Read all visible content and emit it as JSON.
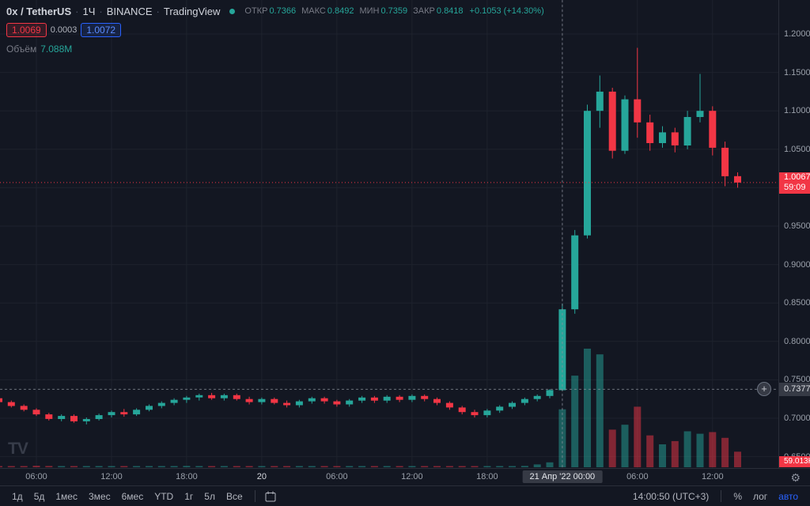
{
  "header": {
    "symbol": "0x / TetherUS",
    "separator": "·",
    "interval": "1Ч",
    "exchange": "BINANCE",
    "brand": "TradingView",
    "ohlc": {
      "open_label": "ОТКР",
      "open": "0.7366",
      "high_label": "МАКС",
      "high": "0.8492",
      "low_label": "МИН",
      "low": "0.7359",
      "close_label": "ЗАКР",
      "close": "0.8418",
      "change": "+0.1053 (+14.30%)"
    },
    "bid": "1.0069",
    "spread": "0.0003",
    "ask": "1.0072",
    "volume_label": "Объём",
    "volume_value": "7.088M"
  },
  "chart_data": {
    "type": "candlestick",
    "title": "0x / TetherUS 1H BINANCE",
    "description": "Hourly ZRX/USDT candles with volume; large pump at 21 Apr '22 00:00 from ~0.73 to ~1.18, now ~1.0067",
    "ylim": [
      0.645,
      1.21
    ],
    "grid": {
      "prices": [
        1.2,
        1.15,
        1.1,
        1.05,
        1.0,
        0.95,
        0.9,
        0.85,
        0.8,
        0.75,
        0.7,
        0.65
      ],
      "time_indices": [
        3,
        9,
        15,
        21,
        27,
        33,
        39,
        45,
        51,
        57
      ]
    },
    "price_axis_labels": [
      {
        "value": 1.2,
        "text": "1.2000"
      },
      {
        "value": 1.15,
        "text": "1.1500"
      },
      {
        "value": 1.1,
        "text": "1.1000"
      },
      {
        "value": 1.05,
        "text": "1.0500"
      },
      {
        "value": 0.95,
        "text": "0.9500"
      },
      {
        "value": 0.9,
        "text": "0.9000"
      },
      {
        "value": 0.85,
        "text": "0.8500"
      },
      {
        "value": 0.8,
        "text": "0.8000"
      },
      {
        "value": 0.75,
        "text": "0.7500"
      },
      {
        "value": 0.7,
        "text": "0.7000"
      },
      {
        "value": 0.65,
        "text": "0.6500"
      }
    ],
    "time_axis_labels": [
      {
        "index": 3,
        "label": "06:00"
      },
      {
        "index": 9,
        "label": "12:00"
      },
      {
        "index": 15,
        "label": "18:00"
      },
      {
        "index": 21,
        "label": "20",
        "emphasis": true
      },
      {
        "index": 27,
        "label": "06:00"
      },
      {
        "index": 33,
        "label": "12:00"
      },
      {
        "index": 39,
        "label": "18:00"
      },
      {
        "index": 51,
        "label": "06:00"
      },
      {
        "index": 57,
        "label": "12:00"
      }
    ],
    "candles": [
      [
        0.726,
        0.7285,
        0.719,
        0.721,
        0.12
      ],
      [
        0.721,
        0.723,
        0.714,
        0.716,
        0.1
      ],
      [
        0.716,
        0.718,
        0.709,
        0.711,
        0.14
      ],
      [
        0.711,
        0.713,
        0.703,
        0.705,
        0.18
      ],
      [
        0.705,
        0.707,
        0.697,
        0.699,
        0.15
      ],
      [
        0.699,
        0.705,
        0.696,
        0.703,
        0.11
      ],
      [
        0.703,
        0.705,
        0.694,
        0.696,
        0.09
      ],
      [
        0.696,
        0.701,
        0.692,
        0.699,
        0.08
      ],
      [
        0.699,
        0.706,
        0.697,
        0.704,
        0.1
      ],
      [
        0.704,
        0.71,
        0.701,
        0.708,
        0.12
      ],
      [
        0.708,
        0.712,
        0.702,
        0.705,
        0.09
      ],
      [
        0.705,
        0.713,
        0.703,
        0.711,
        0.11
      ],
      [
        0.711,
        0.718,
        0.709,
        0.716,
        0.13
      ],
      [
        0.716,
        0.722,
        0.713,
        0.72,
        0.14
      ],
      [
        0.72,
        0.726,
        0.717,
        0.724,
        0.12
      ],
      [
        0.724,
        0.729,
        0.72,
        0.727,
        0.16
      ],
      [
        0.727,
        0.732,
        0.723,
        0.73,
        0.13
      ],
      [
        0.73,
        0.733,
        0.724,
        0.726,
        0.1
      ],
      [
        0.726,
        0.732,
        0.723,
        0.73,
        0.09
      ],
      [
        0.73,
        0.732,
        0.723,
        0.725,
        0.08
      ],
      [
        0.725,
        0.728,
        0.718,
        0.721,
        0.1
      ],
      [
        0.721,
        0.727,
        0.718,
        0.725,
        0.11
      ],
      [
        0.725,
        0.727,
        0.718,
        0.72,
        0.09
      ],
      [
        0.72,
        0.723,
        0.714,
        0.717,
        0.08
      ],
      [
        0.717,
        0.724,
        0.714,
        0.722,
        0.1
      ],
      [
        0.722,
        0.728,
        0.719,
        0.726,
        0.11
      ],
      [
        0.726,
        0.728,
        0.719,
        0.722,
        0.09
      ],
      [
        0.722,
        0.724,
        0.715,
        0.718,
        0.1
      ],
      [
        0.718,
        0.725,
        0.715,
        0.723,
        0.11
      ],
      [
        0.723,
        0.729,
        0.72,
        0.727,
        0.12
      ],
      [
        0.727,
        0.729,
        0.72,
        0.723,
        0.09
      ],
      [
        0.723,
        0.73,
        0.72,
        0.728,
        0.11
      ],
      [
        0.728,
        0.73,
        0.721,
        0.724,
        0.1
      ],
      [
        0.724,
        0.731,
        0.721,
        0.729,
        0.12
      ],
      [
        0.729,
        0.731,
        0.722,
        0.725,
        0.09
      ],
      [
        0.725,
        0.727,
        0.717,
        0.72,
        0.1
      ],
      [
        0.72,
        0.722,
        0.711,
        0.714,
        0.12
      ],
      [
        0.714,
        0.716,
        0.705,
        0.708,
        0.13
      ],
      [
        0.708,
        0.711,
        0.701,
        0.704,
        0.11
      ],
      [
        0.704,
        0.712,
        0.701,
        0.71,
        0.12
      ],
      [
        0.71,
        0.717,
        0.707,
        0.715,
        0.13
      ],
      [
        0.715,
        0.722,
        0.712,
        0.72,
        0.14
      ],
      [
        0.72,
        0.727,
        0.717,
        0.725,
        0.16
      ],
      [
        0.725,
        0.731,
        0.722,
        0.729,
        0.35
      ],
      [
        0.729,
        0.738,
        0.726,
        0.7366,
        0.6
      ],
      [
        0.7366,
        0.8492,
        0.7359,
        0.8418,
        7.088
      ],
      [
        0.8418,
        0.945,
        0.836,
        0.938,
        11.2
      ],
      [
        0.938,
        1.108,
        0.934,
        1.1,
        14.5
      ],
      [
        1.1,
        1.146,
        1.078,
        1.125,
        13.8
      ],
      [
        1.125,
        1.13,
        1.038,
        1.048,
        4.6
      ],
      [
        1.048,
        1.12,
        1.044,
        1.115,
        5.2
      ],
      [
        1.115,
        1.182,
        1.065,
        1.085,
        7.4
      ],
      [
        1.085,
        1.095,
        1.048,
        1.058,
        3.9
      ],
      [
        1.058,
        1.08,
        1.052,
        1.072,
        2.8
      ],
      [
        1.072,
        1.078,
        1.046,
        1.055,
        3.2
      ],
      [
        1.055,
        1.1,
        1.05,
        1.092,
        4.4
      ],
      [
        1.092,
        1.148,
        1.085,
        1.1,
        4.1
      ],
      [
        1.1,
        1.106,
        1.042,
        1.052,
        4.3
      ],
      [
        1.052,
        1.06,
        1.002,
        1.015,
        3.6
      ],
      [
        1.015,
        1.02,
        1.0,
        1.0067,
        1.9
      ]
    ],
    "candle_fields": [
      "open",
      "high",
      "low",
      "close",
      "volume_millions"
    ],
    "last_price": {
      "value": 1.0067,
      "label": "1.0067",
      "countdown": "59:09"
    },
    "crosshair": {
      "index": 45,
      "price": 0.7377,
      "price_label": "0.7377",
      "time_label": "21 Апр '22  00:00"
    },
    "volume_badge": "59.013K",
    "y_map": {
      "price_at_top_grid": 1.2,
      "y_at_top_grid": 43,
      "pixels_per_unit": 972
    },
    "x_map": {
      "x0": -1.5,
      "step": 15.83
    },
    "volume_area_height": 150
  },
  "icons": {
    "plus": "+",
    "gear": "⚙",
    "logo": "TV"
  },
  "toolbar": {
    "ranges": [
      "1д",
      "5д",
      "1мес",
      "3мес",
      "6мес",
      "YTD",
      "1г",
      "5л",
      "Все"
    ],
    "timezone": "14:00:50 (UTC+3)",
    "percent": "%",
    "log": "лог",
    "auto": "авто"
  },
  "colors": {
    "background": "#131722",
    "grid": "#1e222d",
    "up": "#26a69a",
    "down": "#f23645",
    "vol_up": "rgba(38,166,154,0.5)",
    "vol_down": "rgba(242,54,69,0.5)",
    "crosshair": "#8a8f9b",
    "accent_blue": "#2962ff"
  }
}
